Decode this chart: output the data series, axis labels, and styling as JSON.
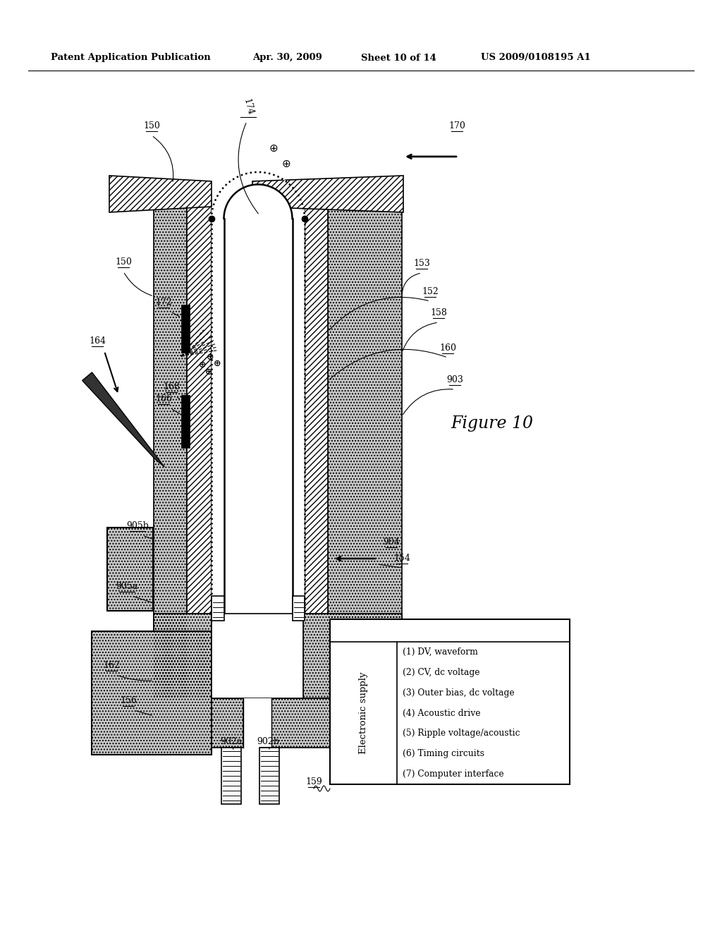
{
  "bg_color": "#ffffff",
  "header_left": "Patent Application Publication",
  "header_date": "Apr. 30, 2009",
  "header_sheet": "Sheet 10 of 14",
  "header_patent": "US 2009/0108195 A1",
  "figure_label": "Figure 10",
  "legend_title": "Electronic supply",
  "legend_items": [
    "(1) DV, waveform",
    "(2) CV, dc voltage",
    "(3) Outer bias, dc voltage",
    "(4) Acoustic drive",
    "(5) Ripple voltage/acoustic",
    "(6) Timing circuits",
    "(7) Computer interface"
  ],
  "dot_color": "#c8c8c8",
  "hatch_color": "#888888"
}
